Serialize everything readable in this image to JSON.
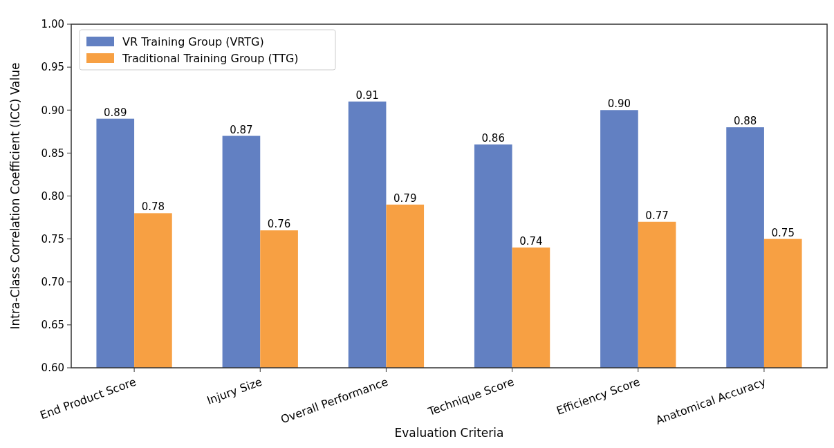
{
  "chart_data": {
    "type": "bar",
    "xlabel": "Evaluation Criteria",
    "ylabel": "Intra-Class Correlation Coefficient (ICC) Value",
    "categories": [
      "End Product Score",
      "Injury Size",
      "Overall Performance",
      "Technique Score",
      "Efficiency Score",
      "Anatomical Accuracy"
    ],
    "series": [
      {
        "name": "VR Training Group (VRTG)",
        "color": "#6280c2",
        "values": [
          0.89,
          0.87,
          0.91,
          0.86,
          0.9,
          0.88
        ],
        "value_labels": [
          "0.89",
          "0.87",
          "0.91",
          "0.86",
          "0.90",
          "0.88"
        ]
      },
      {
        "name": "Traditional Training Group (TTG)",
        "color": "#f7a043",
        "values": [
          0.78,
          0.76,
          0.79,
          0.74,
          0.77,
          0.75
        ],
        "value_labels": [
          "0.78",
          "0.76",
          "0.79",
          "0.74",
          "0.77",
          "0.75"
        ]
      }
    ],
    "ylim": [
      0.6,
      1.0
    ],
    "yticks": [
      {
        "value": 0.6,
        "label": "0.60"
      },
      {
        "value": 0.65,
        "label": "0.65"
      },
      {
        "value": 0.7,
        "label": "0.70"
      },
      {
        "value": 0.75,
        "label": "0.75"
      },
      {
        "value": 0.8,
        "label": "0.80"
      },
      {
        "value": 0.85,
        "label": "0.85"
      },
      {
        "value": 0.9,
        "label": "0.90"
      },
      {
        "value": 0.95,
        "label": "0.95"
      },
      {
        "value": 1.0,
        "label": "1.00"
      }
    ],
    "legend": "top left",
    "grid": false
  }
}
